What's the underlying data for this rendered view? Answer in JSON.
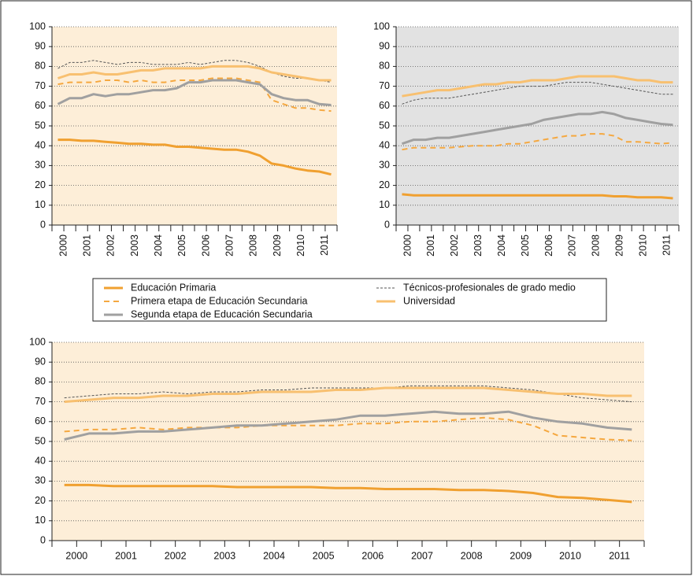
{
  "chart_data": [
    {
      "type": "line",
      "background": "#fdeed8",
      "grid": true,
      "x_label_rotation": -90,
      "ylim": [
        0,
        100
      ],
      "yticks": [
        0,
        10,
        20,
        30,
        40,
        50,
        60,
        70,
        80,
        90,
        100
      ],
      "categories": [
        "2000",
        null,
        "2001",
        null,
        "2002",
        null,
        "2003",
        null,
        "2004",
        null,
        "2005",
        null,
        "2006",
        null,
        "2007",
        null,
        "2008",
        null,
        "2009",
        null,
        "2010",
        null,
        "2011",
        null
      ],
      "series": [
        {
          "name": "Educación Primaria",
          "color": "#f0a030",
          "line_style": "solid",
          "line_width": 3,
          "values": [
            43,
            43,
            42.5,
            42.5,
            42,
            41.5,
            41,
            41,
            40.5,
            40.5,
            39.5,
            39.5,
            39,
            38.5,
            38,
            38,
            37,
            35,
            31,
            30,
            28.5,
            27.5,
            27,
            25.5
          ]
        },
        {
          "name": "Primera etapa de Educación Secundaria",
          "color": "#f5a840",
          "line_style": "dashed",
          "line_width": 2,
          "values": [
            71,
            72,
            72,
            72,
            73,
            73,
            72,
            73,
            72,
            72,
            73,
            73,
            73,
            74,
            74,
            74,
            73,
            72,
            63,
            61,
            59,
            59,
            58,
            57.5
          ]
        },
        {
          "name": "Segunda etapa de Educación Secundaria",
          "color": "#a0a0a0",
          "line_style": "solid",
          "line_width": 3,
          "values": [
            61,
            64,
            64,
            66,
            65,
            66,
            66,
            67,
            68,
            68,
            69,
            72,
            72,
            73,
            73,
            73,
            72,
            71,
            66,
            64,
            63,
            63,
            61,
            60.5
          ]
        },
        {
          "name": "Técnicos-profesionales de grado medio",
          "color": "#555555",
          "line_style": "dashed",
          "line_width": 1,
          "values": [
            79,
            82,
            82,
            83,
            82,
            81,
            82,
            82,
            81,
            81,
            81,
            82,
            81,
            82,
            83,
            83,
            82,
            80,
            77,
            75,
            74,
            74,
            73,
            72
          ]
        },
        {
          "name": "Universidad",
          "color": "#f8c070",
          "line_style": "solid",
          "line_width": 3,
          "values": [
            74,
            76,
            76,
            77,
            76,
            76,
            77,
            78,
            78,
            79,
            79,
            79,
            79,
            80,
            80,
            80,
            80,
            79,
            77,
            76,
            75,
            74,
            73,
            73
          ]
        }
      ]
    },
    {
      "type": "line",
      "background": "#e2e2e2",
      "grid": true,
      "x_label_rotation": -90,
      "ylim": [
        0,
        100
      ],
      "yticks": [
        0,
        10,
        20,
        30,
        40,
        50,
        60,
        70,
        80,
        90,
        100
      ],
      "categories": [
        "2000",
        null,
        "2001",
        null,
        "2002",
        null,
        "2003",
        null,
        "2004",
        null,
        "2005",
        null,
        "2006",
        null,
        "2007",
        null,
        "2008",
        null,
        "2009",
        null,
        "2010",
        null,
        "2011",
        null
      ],
      "series": [
        {
          "name": "Educación Primaria",
          "color": "#f0a030",
          "line_style": "solid",
          "line_width": 3,
          "values": [
            15.5,
            15,
            15,
            15,
            15,
            15,
            15,
            15,
            15,
            15,
            15,
            15,
            15,
            15,
            15,
            15,
            15,
            15,
            14.5,
            14.5,
            14,
            14,
            14,
            13.5
          ]
        },
        {
          "name": "Primera etapa de Educación Secundaria",
          "color": "#f5a840",
          "line_style": "dashed",
          "line_width": 2,
          "values": [
            38,
            39,
            39,
            39,
            39,
            39.5,
            40,
            40,
            40,
            41,
            41,
            42,
            43,
            44,
            45,
            45,
            46,
            46,
            45,
            42,
            42,
            41.5,
            41,
            41.5
          ]
        },
        {
          "name": "Segunda etapa de Educación Secundaria",
          "color": "#a0a0a0",
          "line_style": "solid",
          "line_width": 3,
          "values": [
            41,
            43,
            43,
            44,
            44,
            45,
            46,
            47,
            48,
            49,
            50,
            51,
            53,
            54,
            55,
            56,
            56,
            57,
            56,
            54,
            53,
            52,
            51,
            50.5
          ]
        },
        {
          "name": "Técnicos-profesionales de grado medio",
          "color": "#555555",
          "line_style": "dashed",
          "line_width": 1,
          "values": [
            61,
            63,
            64,
            64,
            64,
            65,
            66,
            67,
            68,
            69,
            70,
            70,
            70,
            71,
            72,
            72,
            72,
            71,
            70,
            69,
            68,
            67,
            66,
            66
          ]
        },
        {
          "name": "Universidad",
          "color": "#f8c070",
          "line_style": "solid",
          "line_width": 3,
          "values": [
            65,
            66,
            67,
            68,
            68,
            69,
            70,
            71,
            71,
            72,
            72,
            73,
            73,
            73,
            74,
            75,
            75,
            75,
            75,
            74,
            73,
            73,
            72,
            72
          ]
        }
      ]
    },
    {
      "type": "line",
      "background": "#fdeed8",
      "grid": true,
      "x_label_rotation": 0,
      "ylim": [
        0,
        100
      ],
      "yticks": [
        0,
        10,
        20,
        30,
        40,
        50,
        60,
        70,
        80,
        90,
        100
      ],
      "categories": [
        "2000",
        null,
        "2001",
        null,
        "2002",
        null,
        "2003",
        null,
        "2004",
        null,
        "2005",
        null,
        "2006",
        null,
        "2007",
        null,
        "2008",
        null,
        "2009",
        null,
        "2010",
        null,
        "2011",
        null
      ],
      "series": [
        {
          "name": "Educación Primaria",
          "color": "#f0a030",
          "line_style": "solid",
          "line_width": 3,
          "values": [
            28,
            28,
            27.5,
            27.5,
            27.5,
            27.5,
            27.5,
            27,
            27,
            27,
            27,
            26.5,
            26.5,
            26,
            26,
            26,
            25.5,
            25.5,
            25,
            24,
            22,
            21.5,
            20.5,
            19.5
          ]
        },
        {
          "name": "Primera etapa de Educación Secundaria",
          "color": "#f5a840",
          "line_style": "dashed",
          "line_width": 2,
          "values": [
            55,
            56,
            56,
            57,
            56,
            57,
            57,
            57,
            58,
            58,
            58,
            58,
            59,
            59,
            60,
            60,
            61,
            62,
            61,
            58,
            53,
            52,
            51,
            50.5
          ]
        },
        {
          "name": "Segunda etapa de Educación Secundaria",
          "color": "#a0a0a0",
          "line_style": "solid",
          "line_width": 3,
          "values": [
            51,
            54,
            54,
            55,
            55,
            56,
            57,
            58,
            58,
            59,
            60,
            61,
            63,
            63,
            64,
            65,
            64,
            64,
            65,
            62,
            60,
            59,
            57,
            56
          ]
        },
        {
          "name": "Técnicos-profesionales de grado medio",
          "color": "#555555",
          "line_style": "dashed",
          "line_width": 1,
          "values": [
            72,
            73,
            74,
            74,
            75,
            74,
            75,
            75,
            76,
            76,
            77,
            77,
            77,
            77,
            78,
            78,
            78,
            78,
            77,
            76,
            74,
            72,
            71,
            70
          ]
        },
        {
          "name": "Universidad",
          "color": "#f8c070",
          "line_style": "solid",
          "line_width": 3,
          "values": [
            70,
            71,
            72,
            72,
            73,
            73,
            74,
            74,
            75,
            75,
            75,
            76,
            76,
            77,
            77,
            77,
            77,
            77,
            76,
            75,
            74,
            74,
            73,
            73
          ]
        }
      ]
    }
  ]
}
